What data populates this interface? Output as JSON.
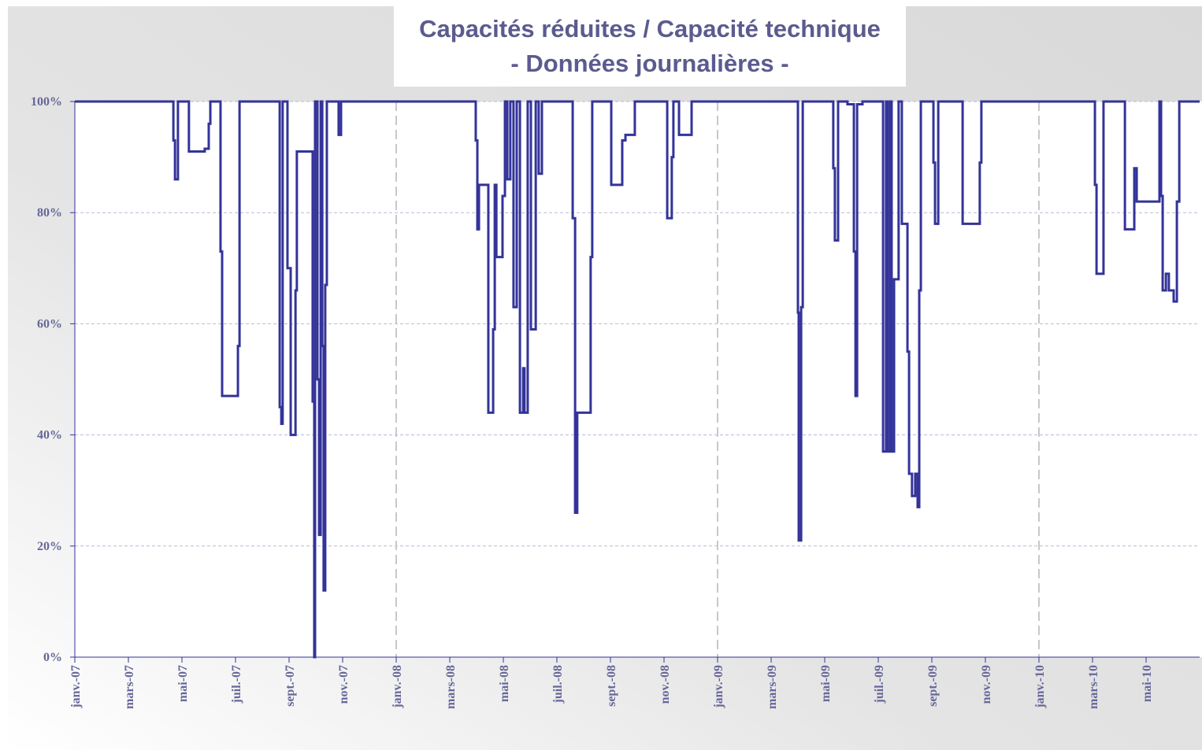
{
  "chart_data": {
    "type": "step-line",
    "title": "Capacités réduites / Capacité technique",
    "subtitle": "- Données journalières  -",
    "x": [
      0,
      3.68,
      3.74,
      3.85,
      4.26,
      4.85,
      5.0,
      5.06,
      5.44,
      5.5,
      6.09,
      6.15,
      7.65,
      7.71,
      7.76,
      7.94,
      8.06,
      8.24,
      8.29,
      8.88,
      8.94,
      8.97,
      9.06,
      9.12,
      9.18,
      9.24,
      9.29,
      9.35,
      9.41,
      9.85,
      9.94,
      14.97,
      15.03,
      15.09,
      15.44,
      15.62,
      15.68,
      15.74,
      15.97,
      16.06,
      16.15,
      16.26,
      16.38,
      16.5,
      16.62,
      16.74,
      16.79,
      16.91,
      17.03,
      17.21,
      17.32,
      17.44,
      18.59,
      18.68,
      18.76,
      19.26,
      19.32,
      20.03,
      20.44,
      20.56,
      20.91,
      22.12,
      22.29,
      22.35,
      22.56,
      23.03,
      27.0,
      27.03,
      27.12,
      27.18,
      28.32,
      28.38,
      28.5,
      28.85,
      29.09,
      29.15,
      29.21,
      29.41,
      30.18,
      30.29,
      30.35,
      30.44,
      30.5,
      30.59,
      30.76,
      30.88,
      31.09,
      31.15,
      31.26,
      31.38,
      31.47,
      31.53,
      31.59,
      32.06,
      32.12,
      32.24,
      33.15,
      33.79,
      33.85,
      38.09,
      38.15,
      38.41,
      39.21,
      39.56,
      39.65,
      40.5,
      40.56,
      40.62,
      40.74,
      40.85,
      41.03,
      41.15,
      41.24,
      42
    ],
    "series": [
      {
        "color": "#333399",
        "values": [
          100,
          93,
          86,
          100,
          91,
          91.5,
          96,
          100,
          73,
          47,
          56,
          100,
          45,
          42,
          100,
          70,
          40,
          66,
          91,
          46,
          0,
          100,
          50,
          22,
          100,
          56,
          12,
          67,
          100,
          94,
          100,
          93,
          77,
          85,
          44,
          59,
          85,
          72,
          83,
          100,
          86,
          100,
          63,
          100,
          44,
          52,
          44,
          100,
          59,
          100,
          87,
          100,
          79,
          26,
          44,
          72,
          100,
          85,
          93,
          94,
          100,
          79,
          90,
          100,
          94,
          100,
          62,
          21,
          63,
          100,
          88,
          75,
          100,
          99.5,
          73,
          47,
          99.5,
          100,
          37,
          100,
          37,
          100,
          37,
          68,
          100,
          78,
          55,
          33,
          29,
          33,
          27,
          66,
          100,
          89,
          78,
          100,
          78,
          89,
          100,
          85,
          69,
          100,
          77,
          88,
          82,
          100,
          83,
          66,
          69,
          66,
          64,
          82,
          100,
          100
        ]
      }
    ],
    "xlim": [
      0,
      42
    ],
    "xticks": [
      {
        "value": 0,
        "label": "janv.-07"
      },
      {
        "value": 2,
        "label": "mars-07"
      },
      {
        "value": 4,
        "label": "mai-07"
      },
      {
        "value": 6,
        "label": "juil.-07"
      },
      {
        "value": 8,
        "label": "sept.-07"
      },
      {
        "value": 10,
        "label": "nov.-07"
      },
      {
        "value": 12,
        "label": "janv.-08"
      },
      {
        "value": 14,
        "label": "mars-08"
      },
      {
        "value": 16,
        "label": "mai-08"
      },
      {
        "value": 18,
        "label": "juil.-08"
      },
      {
        "value": 20,
        "label": "sept.-08"
      },
      {
        "value": 22,
        "label": "nov.-08"
      },
      {
        "value": 24,
        "label": "janv.-09"
      },
      {
        "value": 26,
        "label": "mars-09"
      },
      {
        "value": 28,
        "label": "mai-09"
      },
      {
        "value": 30,
        "label": "juil.-09"
      },
      {
        "value": 32,
        "label": "sept.-09"
      },
      {
        "value": 34,
        "label": "nov.-09"
      },
      {
        "value": 36,
        "label": "janv.-10"
      },
      {
        "value": 38,
        "label": "mars-10"
      },
      {
        "value": 40,
        "label": "mai-10"
      }
    ],
    "ylim": [
      0,
      100
    ],
    "yticks": [
      {
        "value": 0,
        "label": "0%"
      },
      {
        "value": 20,
        "label": "20%"
      },
      {
        "value": 40,
        "label": "40%"
      },
      {
        "value": 60,
        "label": "60%"
      },
      {
        "value": 80,
        "label": "80%"
      },
      {
        "value": 100,
        "label": "100%"
      }
    ],
    "grid": true
  }
}
